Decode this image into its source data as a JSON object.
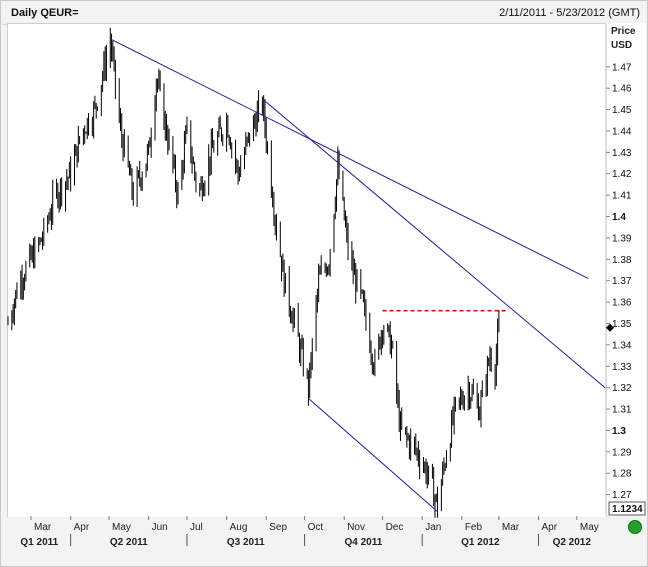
{
  "header": {
    "title": "Daily QEUR=",
    "date_range": "2/11/2011 - 5/23/2012 (GMT)"
  },
  "chart_data": {
    "type": "line",
    "title": "Daily QEUR=",
    "ylabel_line1": "Price",
    "ylabel_line2": "USD",
    "x_range": [
      "2011-02-11",
      "2012-05-23"
    ],
    "ylim": [
      1.26,
      1.49
    ],
    "y_ticks": [
      "1.47",
      "1.46",
      "1.45",
      "1.44",
      "1.43",
      "1.42",
      "1.41",
      "1.4",
      "1.39",
      "1.38",
      "1.37",
      "1.36",
      "1.35",
      "1.34",
      "1.33",
      "1.32",
      "1.31",
      "1.3",
      "1.29",
      "1.28",
      "1.27"
    ],
    "y_ticks_bold": [
      "1.4",
      "1.3"
    ],
    "current_price_label": "1.1234",
    "month_labels": [
      "Mar",
      "Apr",
      "May",
      "Jun",
      "Jul",
      "Aug",
      "Sep",
      "Oct",
      "Nov",
      "Dec",
      "Jan",
      "Feb",
      "Mar",
      "Apr",
      "May"
    ],
    "quarter_labels": [
      "Q1 2011",
      "Q2 2011",
      "Q3 2011",
      "Q4 2011",
      "Q1 2012",
      "Q2 2012"
    ],
    "price_path": [
      [
        "2011-02-11",
        1.35
      ],
      [
        "2011-02-20",
        1.37
      ],
      [
        "2011-03-01",
        1.38
      ],
      [
        "2011-03-10",
        1.39
      ],
      [
        "2011-03-20",
        1.41
      ],
      [
        "2011-04-01",
        1.42
      ],
      [
        "2011-04-10",
        1.44
      ],
      [
        "2011-04-20",
        1.45
      ],
      [
        "2011-05-02",
        1.483
      ],
      [
        "2011-05-10",
        1.44
      ],
      [
        "2011-05-20",
        1.41
      ],
      [
        "2011-06-01",
        1.43
      ],
      [
        "2011-06-07",
        1.465
      ],
      [
        "2011-06-15",
        1.44
      ],
      [
        "2011-06-24",
        1.41
      ],
      [
        "2011-07-01",
        1.44
      ],
      [
        "2011-07-10",
        1.41
      ],
      [
        "2011-07-20",
        1.43
      ],
      [
        "2011-08-01",
        1.445
      ],
      [
        "2011-08-10",
        1.42
      ],
      [
        "2011-08-20",
        1.44
      ],
      [
        "2011-08-29",
        1.453
      ],
      [
        "2011-09-08",
        1.4
      ],
      [
        "2011-09-15",
        1.37
      ],
      [
        "2011-09-23",
        1.35
      ],
      [
        "2011-10-04",
        1.32
      ],
      [
        "2011-10-12",
        1.37
      ],
      [
        "2011-10-20",
        1.38
      ],
      [
        "2011-10-27",
        1.423
      ],
      [
        "2011-11-05",
        1.38
      ],
      [
        "2011-11-15",
        1.36
      ],
      [
        "2011-11-25",
        1.33
      ],
      [
        "2011-12-01",
        1.35
      ],
      [
        "2011-12-08",
        1.34
      ],
      [
        "2011-12-15",
        1.3
      ],
      [
        "2011-12-28",
        1.29
      ],
      [
        "2012-01-05",
        1.28
      ],
      [
        "2012-01-13",
        1.265
      ],
      [
        "2012-01-20",
        1.29
      ],
      [
        "2012-01-27",
        1.31
      ],
      [
        "2012-02-06",
        1.32
      ],
      [
        "2012-02-15",
        1.31
      ],
      [
        "2012-02-23",
        1.335
      ],
      [
        "2012-02-27",
        1.33
      ],
      [
        "2012-03-01",
        1.348
      ]
    ],
    "trendlines": [
      {
        "from": [
          "2011-05-02",
          1.483
        ],
        "to": [
          "2012-05-10",
          1.371
        ],
        "color": "#1f1f8f"
      },
      {
        "from": [
          "2011-08-29",
          1.455
        ],
        "to": [
          "2012-05-23",
          1.32
        ],
        "color": "#1f1f8f"
      },
      {
        "from": [
          "2011-10-04",
          1.315
        ],
        "to": [
          "2012-01-13",
          1.262
        ],
        "color": "#1f1f8f"
      }
    ],
    "resistance": {
      "from": "2011-12-01",
      "to": "2012-03-01",
      "value": 1.356,
      "color": "#cc1111"
    }
  }
}
